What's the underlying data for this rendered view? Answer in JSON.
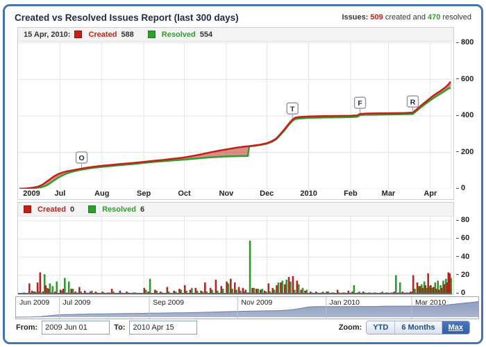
{
  "header": {
    "title": "Created vs Resolved Issues Report (last 300 days)",
    "issues_label": "Issues:",
    "created_count": "509",
    "created_text": " created and ",
    "resolved_count": "470",
    "resolved_text": " resolved"
  },
  "colors": {
    "created": "#c52018",
    "created_dark": "#8e150f",
    "resolved": "#2ca02c",
    "resolved_dark": "#1d7a1d",
    "band": "rgba(190,48,36,0.55)",
    "grid": "#e4e4e4",
    "axis_text": "#222222",
    "widget_border": "#4474b4",
    "nav_area_top": "#8e9dc0",
    "nav_area_bottom": "#aab5ce",
    "nav_line": "#6d7ea6"
  },
  "main_chart": {
    "legend": {
      "date_label": "15 Apr, 2010:",
      "created_label": "Created",
      "created_value": "588",
      "resolved_label": "Resolved",
      "resolved_value": "554"
    }
  },
  "bar_chart": {
    "legend": {
      "created_label": "Created",
      "created_value": "0",
      "resolved_label": "Resolved",
      "resolved_value": "6"
    }
  },
  "chart_data": [
    {
      "type": "line",
      "title": "Created vs Resolved cumulative issues",
      "x_range": [
        "2009 Jun 01",
        "2010 Apr 15"
      ],
      "total_days": 319,
      "ylim": [
        0,
        800
      ],
      "yticks": [
        0,
        200,
        400,
        600,
        800
      ],
      "xticks": [
        {
          "label": "2009",
          "day": 9,
          "grid": false
        },
        {
          "label": "Jul",
          "day": 30,
          "grid": true
        },
        {
          "label": "Aug",
          "day": 61,
          "grid": true
        },
        {
          "label": "Sep",
          "day": 92,
          "grid": true
        },
        {
          "label": "Oct",
          "day": 122,
          "grid": true
        },
        {
          "label": "Nov",
          "day": 153,
          "grid": true
        },
        {
          "label": "Dec",
          "day": 183,
          "grid": true
        },
        {
          "label": "2010",
          "day": 214,
          "grid": true
        },
        {
          "label": "Feb",
          "day": 245,
          "grid": true
        },
        {
          "label": "Mar",
          "day": 273,
          "grid": true
        },
        {
          "label": "Apr",
          "day": 304,
          "grid": true
        }
      ],
      "days": [
        0,
        5,
        10,
        14,
        17,
        20,
        23,
        26,
        29,
        32,
        35,
        38,
        41,
        44,
        47,
        50,
        55,
        61,
        68,
        75,
        83,
        92,
        99,
        106,
        113,
        120,
        126,
        132,
        137,
        142,
        147,
        152,
        157,
        162,
        166,
        169,
        170,
        174,
        178,
        183,
        187,
        190,
        193,
        196,
        199,
        202,
        204,
        207,
        214,
        225,
        235,
        245,
        250,
        252,
        256,
        265,
        275,
        285,
        291,
        294,
        297,
        300,
        303,
        306,
        309,
        312,
        315,
        317,
        319
      ],
      "series": [
        {
          "name": "Created",
          "values": [
            0,
            2,
            6,
            12,
            22,
            38,
            55,
            70,
            82,
            90,
            96,
            100,
            104,
            108,
            112,
            116,
            121,
            126,
            131,
            136,
            141,
            148,
            153,
            158,
            164,
            170,
            177,
            185,
            193,
            201,
            208,
            215,
            221,
            227,
            231,
            233,
            234,
            238,
            242,
            250,
            262,
            276,
            300,
            326,
            354,
            380,
            390,
            394,
            397,
            399,
            400,
            401,
            403,
            411,
            413,
            414,
            415,
            416,
            418,
            436,
            456,
            474,
            492,
            510,
            525,
            540,
            556,
            570,
            588
          ]
        },
        {
          "name": "Resolved",
          "values": [
            0,
            1,
            3,
            6,
            10,
            18,
            32,
            48,
            62,
            74,
            84,
            91,
            97,
            102,
            106,
            110,
            115,
            120,
            125,
            130,
            135,
            142,
            147,
            151,
            155,
            159,
            163,
            167,
            170,
            173,
            175,
            177,
            178,
            179,
            180,
            180,
            232,
            236,
            240,
            247,
            258,
            272,
            295,
            320,
            348,
            372,
            382,
            386,
            389,
            391,
            392,
            393,
            395,
            404,
            406,
            407,
            408,
            409,
            410,
            428,
            447,
            464,
            480,
            496,
            510,
            524,
            538,
            549,
            554
          ]
        }
      ],
      "markers": [
        {
          "label": "O",
          "day": 46
        },
        {
          "label": "T",
          "day": 202
        },
        {
          "label": "F",
          "day": 252
        },
        {
          "label": "R",
          "day": 291
        }
      ]
    },
    {
      "type": "bar",
      "title": "Daily created vs resolved issues",
      "ylim": [
        0,
        80
      ],
      "yticks": [
        0,
        20,
        40,
        60,
        80
      ],
      "points": [
        [
          4,
          1,
          0
        ],
        [
          8,
          11,
          1
        ],
        [
          10,
          3,
          2
        ],
        [
          12,
          2,
          1
        ],
        [
          14,
          12,
          2
        ],
        [
          16,
          23,
          0
        ],
        [
          18,
          2,
          21
        ],
        [
          20,
          9,
          6
        ],
        [
          22,
          5,
          11
        ],
        [
          24,
          1,
          8
        ],
        [
          27,
          2,
          13
        ],
        [
          31,
          4,
          3
        ],
        [
          33,
          5,
          17
        ],
        [
          36,
          1,
          13
        ],
        [
          39,
          5,
          5
        ],
        [
          42,
          2,
          1
        ],
        [
          45,
          7,
          2
        ],
        [
          49,
          3,
          1
        ],
        [
          53,
          2,
          3
        ],
        [
          57,
          2,
          1
        ],
        [
          62,
          2,
          1
        ],
        [
          66,
          1,
          1
        ],
        [
          69,
          5,
          2
        ],
        [
          75,
          3,
          1
        ],
        [
          80,
          2,
          1
        ],
        [
          85,
          1,
          1
        ],
        [
          93,
          6,
          4
        ],
        [
          96,
          2,
          16
        ],
        [
          101,
          4,
          3
        ],
        [
          105,
          2,
          1
        ],
        [
          110,
          7,
          2
        ],
        [
          115,
          3,
          2
        ],
        [
          119,
          5,
          4
        ],
        [
          123,
          9,
          3
        ],
        [
          127,
          4,
          6
        ],
        [
          131,
          6,
          3
        ],
        [
          135,
          3,
          2
        ],
        [
          138,
          12,
          2
        ],
        [
          142,
          6,
          4
        ],
        [
          146,
          15,
          3
        ],
        [
          150,
          8,
          5
        ],
        [
          154,
          13,
          11
        ],
        [
          157,
          16,
          5
        ],
        [
          160,
          12,
          4
        ],
        [
          163,
          7,
          3
        ],
        [
          166,
          6,
          2
        ],
        [
          168,
          4,
          1
        ],
        [
          170,
          1,
          58
        ],
        [
          173,
          6,
          6
        ],
        [
          176,
          5,
          5
        ],
        [
          179,
          4,
          5
        ],
        [
          182,
          3,
          2
        ],
        [
          185,
          11,
          2
        ],
        [
          188,
          6,
          4
        ],
        [
          191,
          9,
          12
        ],
        [
          194,
          12,
          14
        ],
        [
          197,
          10,
          15
        ],
        [
          200,
          18,
          13
        ],
        [
          203,
          19,
          4
        ],
        [
          206,
          14,
          10
        ],
        [
          209,
          4,
          6
        ],
        [
          212,
          3,
          4
        ],
        [
          216,
          2,
          1
        ],
        [
          220,
          2,
          1
        ],
        [
          224,
          1,
          2
        ],
        [
          228,
          2,
          2
        ],
        [
          232,
          1,
          1
        ],
        [
          236,
          4,
          1
        ],
        [
          240,
          1,
          1
        ],
        [
          244,
          3,
          1
        ],
        [
          247,
          2,
          9
        ],
        [
          251,
          1,
          2
        ],
        [
          255,
          2,
          1
        ],
        [
          259,
          1,
          1
        ],
        [
          263,
          1,
          1
        ],
        [
          268,
          1,
          2
        ],
        [
          272,
          1,
          1
        ],
        [
          276,
          1,
          1
        ],
        [
          278,
          2,
          20
        ],
        [
          281,
          1,
          12
        ],
        [
          284,
          2,
          1
        ],
        [
          287,
          1,
          1
        ],
        [
          290,
          2,
          2
        ],
        [
          292,
          20,
          5
        ],
        [
          295,
          12,
          8
        ],
        [
          297,
          8,
          10
        ],
        [
          299,
          6,
          13
        ],
        [
          301,
          9,
          6
        ],
        [
          303,
          22,
          8
        ],
        [
          305,
          9,
          6
        ],
        [
          307,
          7,
          12
        ],
        [
          309,
          5,
          14
        ],
        [
          311,
          4,
          9
        ],
        [
          313,
          6,
          14
        ],
        [
          315,
          10,
          16
        ],
        [
          317,
          12,
          8
        ],
        [
          318,
          23,
          6
        ],
        [
          319,
          22,
          17
        ]
      ],
      "series_names": [
        "Created",
        "Resolved"
      ]
    },
    {
      "type": "area",
      "title": "Navigator trend (cumulative created)",
      "total_days": 319,
      "ymax": 650,
      "days": [
        0,
        5,
        10,
        14,
        17,
        20,
        23,
        26,
        29,
        32,
        35,
        38,
        41,
        44,
        47,
        50,
        55,
        61,
        68,
        75,
        83,
        92,
        99,
        106,
        113,
        120,
        126,
        132,
        137,
        142,
        147,
        152,
        157,
        162,
        166,
        169,
        170,
        174,
        178,
        183,
        187,
        190,
        193,
        196,
        199,
        202,
        204,
        207,
        214,
        225,
        235,
        245,
        250,
        252,
        256,
        265,
        275,
        285,
        291,
        294,
        297,
        300,
        303,
        306,
        309,
        312,
        315,
        317,
        319
      ],
      "values": [
        0,
        2,
        6,
        12,
        22,
        38,
        55,
        70,
        82,
        90,
        96,
        100,
        104,
        108,
        112,
        116,
        121,
        126,
        131,
        136,
        141,
        148,
        153,
        158,
        164,
        170,
        177,
        185,
        193,
        201,
        208,
        215,
        221,
        227,
        231,
        233,
        234,
        238,
        242,
        250,
        262,
        276,
        300,
        326,
        354,
        380,
        390,
        394,
        397,
        399,
        400,
        401,
        403,
        411,
        413,
        414,
        415,
        416,
        418,
        436,
        456,
        474,
        492,
        510,
        525,
        540,
        556,
        570,
        588
      ],
      "dividers": [
        30,
        92,
        153,
        214,
        273
      ],
      "labels": [
        {
          "label": "Jun 2009",
          "day": 0
        },
        {
          "label": "Jul 2009",
          "day": 30
        },
        {
          "label": "Sep 2009",
          "day": 92
        },
        {
          "label": "Nov 2009",
          "day": 153
        },
        {
          "label": "Jan 2010",
          "day": 214
        },
        {
          "label": "Mar 2010",
          "day": 273
        }
      ]
    }
  ],
  "controls": {
    "from_label": "From:",
    "from_value": "2009 Jun 01",
    "to_label": "To:",
    "to_value": "2010 Apr 15",
    "zoom_label": "Zoom:",
    "zoom_buttons": [
      {
        "label": "YTD",
        "active": false
      },
      {
        "label": "6 Months",
        "active": false
      },
      {
        "label": "Max",
        "active": true
      }
    ]
  }
}
